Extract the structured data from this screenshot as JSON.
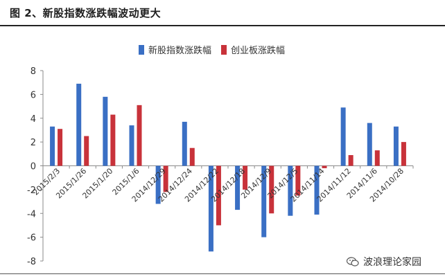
{
  "title": "图 2、新股指数涨跌幅波动更大",
  "watermark": "波浪理论家园",
  "colors": {
    "series1": "#3a6fc4",
    "series2": "#c8323a",
    "axis": "#8a8a8a",
    "text": "#333333"
  },
  "chart_data": {
    "type": "bar",
    "categories": [
      "2015/2/3",
      "2015/1/26",
      "2015/1/20",
      "2015/1/6",
      "2014/12/29",
      "2014/12/24",
      "2014/12/22",
      "2014/12/18",
      "2014/12/9",
      "2014/12/5",
      "2014/11/14",
      "2014/11/12",
      "2014/11/6",
      "2014/10/28"
    ],
    "series": [
      {
        "name": "新股指数涨跌幅",
        "values": [
          3.3,
          6.9,
          5.8,
          3.4,
          -3.2,
          3.7,
          -7.2,
          -3.7,
          -6.0,
          -4.2,
          -4.1,
          4.9,
          3.6,
          3.3
        ]
      },
      {
        "name": "创业板涨跌幅",
        "values": [
          3.1,
          2.5,
          4.3,
          5.1,
          -2.2,
          1.5,
          -5.0,
          -2.0,
          -4.0,
          -2.5,
          -0.2,
          0.9,
          1.3,
          2.0
        ]
      }
    ],
    "ylim": [
      -8,
      8
    ],
    "yticks": [
      "8",
      "6",
      "4",
      "2",
      "0",
      "-2",
      "-4",
      "-6",
      "-8"
    ],
    "legend_position": "top-center",
    "grid": false
  }
}
